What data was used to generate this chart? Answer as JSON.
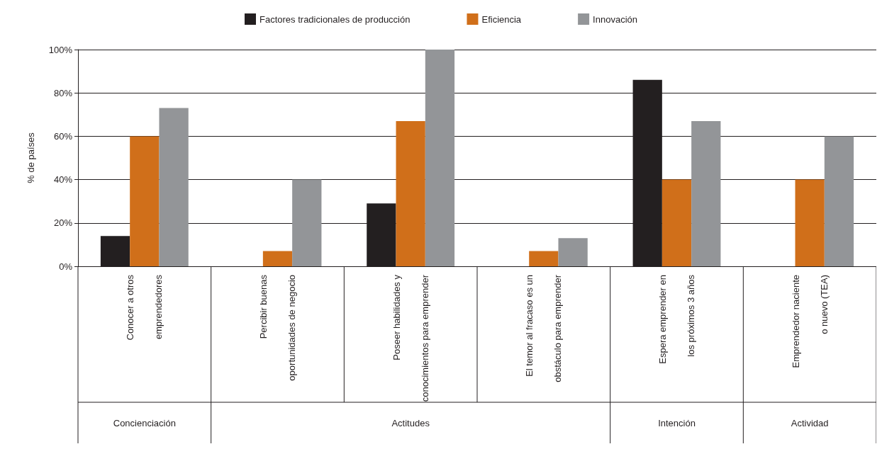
{
  "chart_data": {
    "type": "bar",
    "ylabel": "% de países",
    "categories": [
      "Conocer a otros emprendedores",
      "Percibir buenas oportunidades de negocio",
      "Poseer habilidades y conocimientos para emprender",
      "El temor al fracaso es un obstáculo para emprender",
      "Espera emprender en los próximos 3 años",
      "Emprendedor naciente o nuevo (TEA)"
    ],
    "series": [
      {
        "name": "Factores tradicionales de producción",
        "color": "#231f20",
        "values": [
          14,
          0,
          29,
          0,
          86,
          0
        ]
      },
      {
        "name": "Eficiencia",
        "color": "#d06f1a",
        "values": [
          60,
          7,
          67,
          7,
          40,
          40
        ]
      },
      {
        "name": "Innovación",
        "color": "#939598",
        "values": [
          73,
          40,
          100,
          13,
          67,
          60
        ]
      }
    ],
    "ylim": [
      0,
      100
    ],
    "yticks": [
      {
        "value": 0,
        "label": "0%"
      },
      {
        "value": 20,
        "label": "20%"
      },
      {
        "value": 40,
        "label": "40%"
      },
      {
        "value": 60,
        "label": "60%"
      },
      {
        "value": 80,
        "label": "80%"
      },
      {
        "value": 100,
        "label": "100%"
      }
    ],
    "grid": "y",
    "legend": "top",
    "annotations": [
      "Concienciación",
      "Actitudes",
      "Intención",
      "Actividad"
    ]
  }
}
